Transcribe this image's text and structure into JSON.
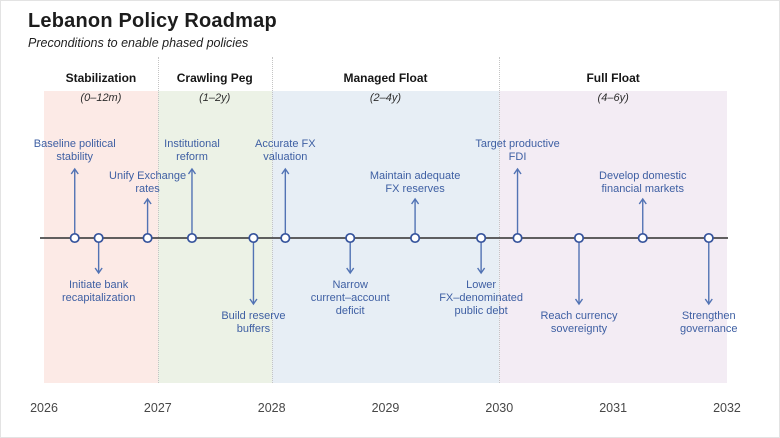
{
  "header": {
    "title": "Lebanon Policy Roadmap",
    "subtitle": "Preconditions to enable phased policies"
  },
  "colors": {
    "timeline_line": "#4a4a4a",
    "event_text": "#3e5fa3",
    "arrow": "#5273b4",
    "marker_stroke": "#35539c",
    "marker_fill": "#ffffff",
    "separator": "#c4c4c4"
  },
  "chart_data": {
    "type": "timeline",
    "title": "Lebanon Policy Roadmap",
    "subtitle": "Preconditions to enable phased policies",
    "axis": {
      "start_year": 2026,
      "end_year": 2032,
      "tick_labels": [
        "2026",
        "2027",
        "2028",
        "2029",
        "2030",
        "2031",
        "2032"
      ],
      "ticks": [
        2026,
        2027,
        2028,
        2029,
        2030,
        2031,
        2032
      ]
    },
    "phases": [
      {
        "name": "Stabilization",
        "duration": "(0–12m)",
        "span_years": [
          2026,
          2027
        ],
        "color": "#fceae6"
      },
      {
        "name": "Crawling Peg",
        "duration": "(1–2y)",
        "span_years": [
          2027,
          2028
        ],
        "color": "#ecf2e6"
      },
      {
        "name": "Managed Float",
        "duration": "(2–4y)",
        "span_years": [
          2028,
          2030
        ],
        "color": "#e7eef5"
      },
      {
        "name": "Full Float",
        "duration": "(4–6y)",
        "span_years": [
          2030,
          2032
        ],
        "color": "#f3ecf4"
      }
    ],
    "events": [
      {
        "label": "Baseline political\nstability",
        "year": 2026.27,
        "direction": "up",
        "level": "far"
      },
      {
        "label": "Initiate bank\nrecapitalization",
        "year": 2026.48,
        "direction": "down",
        "level": "near"
      },
      {
        "label": "Unify Exchange\nrates",
        "year": 2026.91,
        "direction": "up",
        "level": "near"
      },
      {
        "label": "Institutional\nreform",
        "year": 2027.3,
        "direction": "up",
        "level": "far"
      },
      {
        "label": "Build reserve\nbuffers",
        "year": 2027.84,
        "direction": "down",
        "level": "far"
      },
      {
        "label": "Accurate FX\nvaluation",
        "year": 2028.12,
        "direction": "up",
        "level": "far"
      },
      {
        "label": "Narrow\ncurrent–account\ndeficit",
        "year": 2028.69,
        "direction": "down",
        "level": "near"
      },
      {
        "label": "Maintain adequate\nFX reserves",
        "year": 2029.26,
        "direction": "up",
        "level": "near"
      },
      {
        "label": "Lower\nFX–denominated\npublic debt",
        "year": 2029.84,
        "direction": "down",
        "level": "near"
      },
      {
        "label": "Target productive\nFDI",
        "year": 2030.16,
        "direction": "up",
        "level": "far"
      },
      {
        "label": "Reach currency\nsovereignty",
        "year": 2030.7,
        "direction": "down",
        "level": "far"
      },
      {
        "label": "Develop domestic\nfinancial markets",
        "year": 2031.26,
        "direction": "up",
        "level": "near"
      },
      {
        "label": "Strengthen\ngovernance",
        "year": 2031.84,
        "direction": "down",
        "level": "far"
      }
    ]
  }
}
